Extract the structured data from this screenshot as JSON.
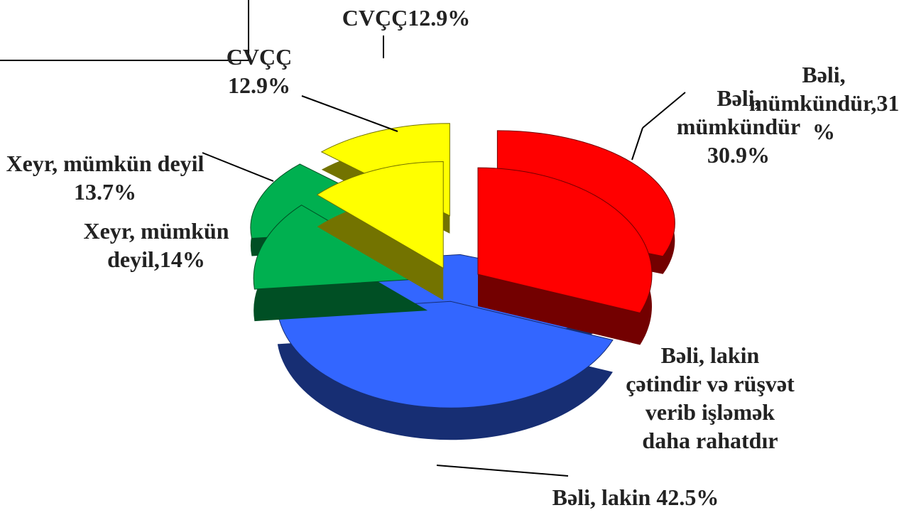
{
  "chart_data": [
    {
      "type": "pie",
      "labels": [
        "Bəli, mümkündür,31 %",
        "Bəli, lakin çətindir və rüşvət verib işləmək daha rahatdır",
        "Xeyr, mümkün deyil,14%",
        "CVÇÇ12.9%"
      ],
      "values": [
        31,
        42.5,
        14,
        12.9
      ],
      "colors": [
        "#ff0000",
        "#3366ff",
        "#00b050",
        "#ffff00"
      ]
    },
    {
      "type": "pie",
      "labels": [
        "Bəli, mümkündür 30.9%",
        "Bəli, lakin 42.5%",
        "Xeyr, mümkün deyil 13.7%",
        "CVÇÇ 12.9%"
      ],
      "values": [
        30.9,
        42.5,
        13.7,
        12.9
      ],
      "colors": [
        "#ff0000",
        "#3366ff",
        "#00b050",
        "#ffff00"
      ]
    }
  ]
}
